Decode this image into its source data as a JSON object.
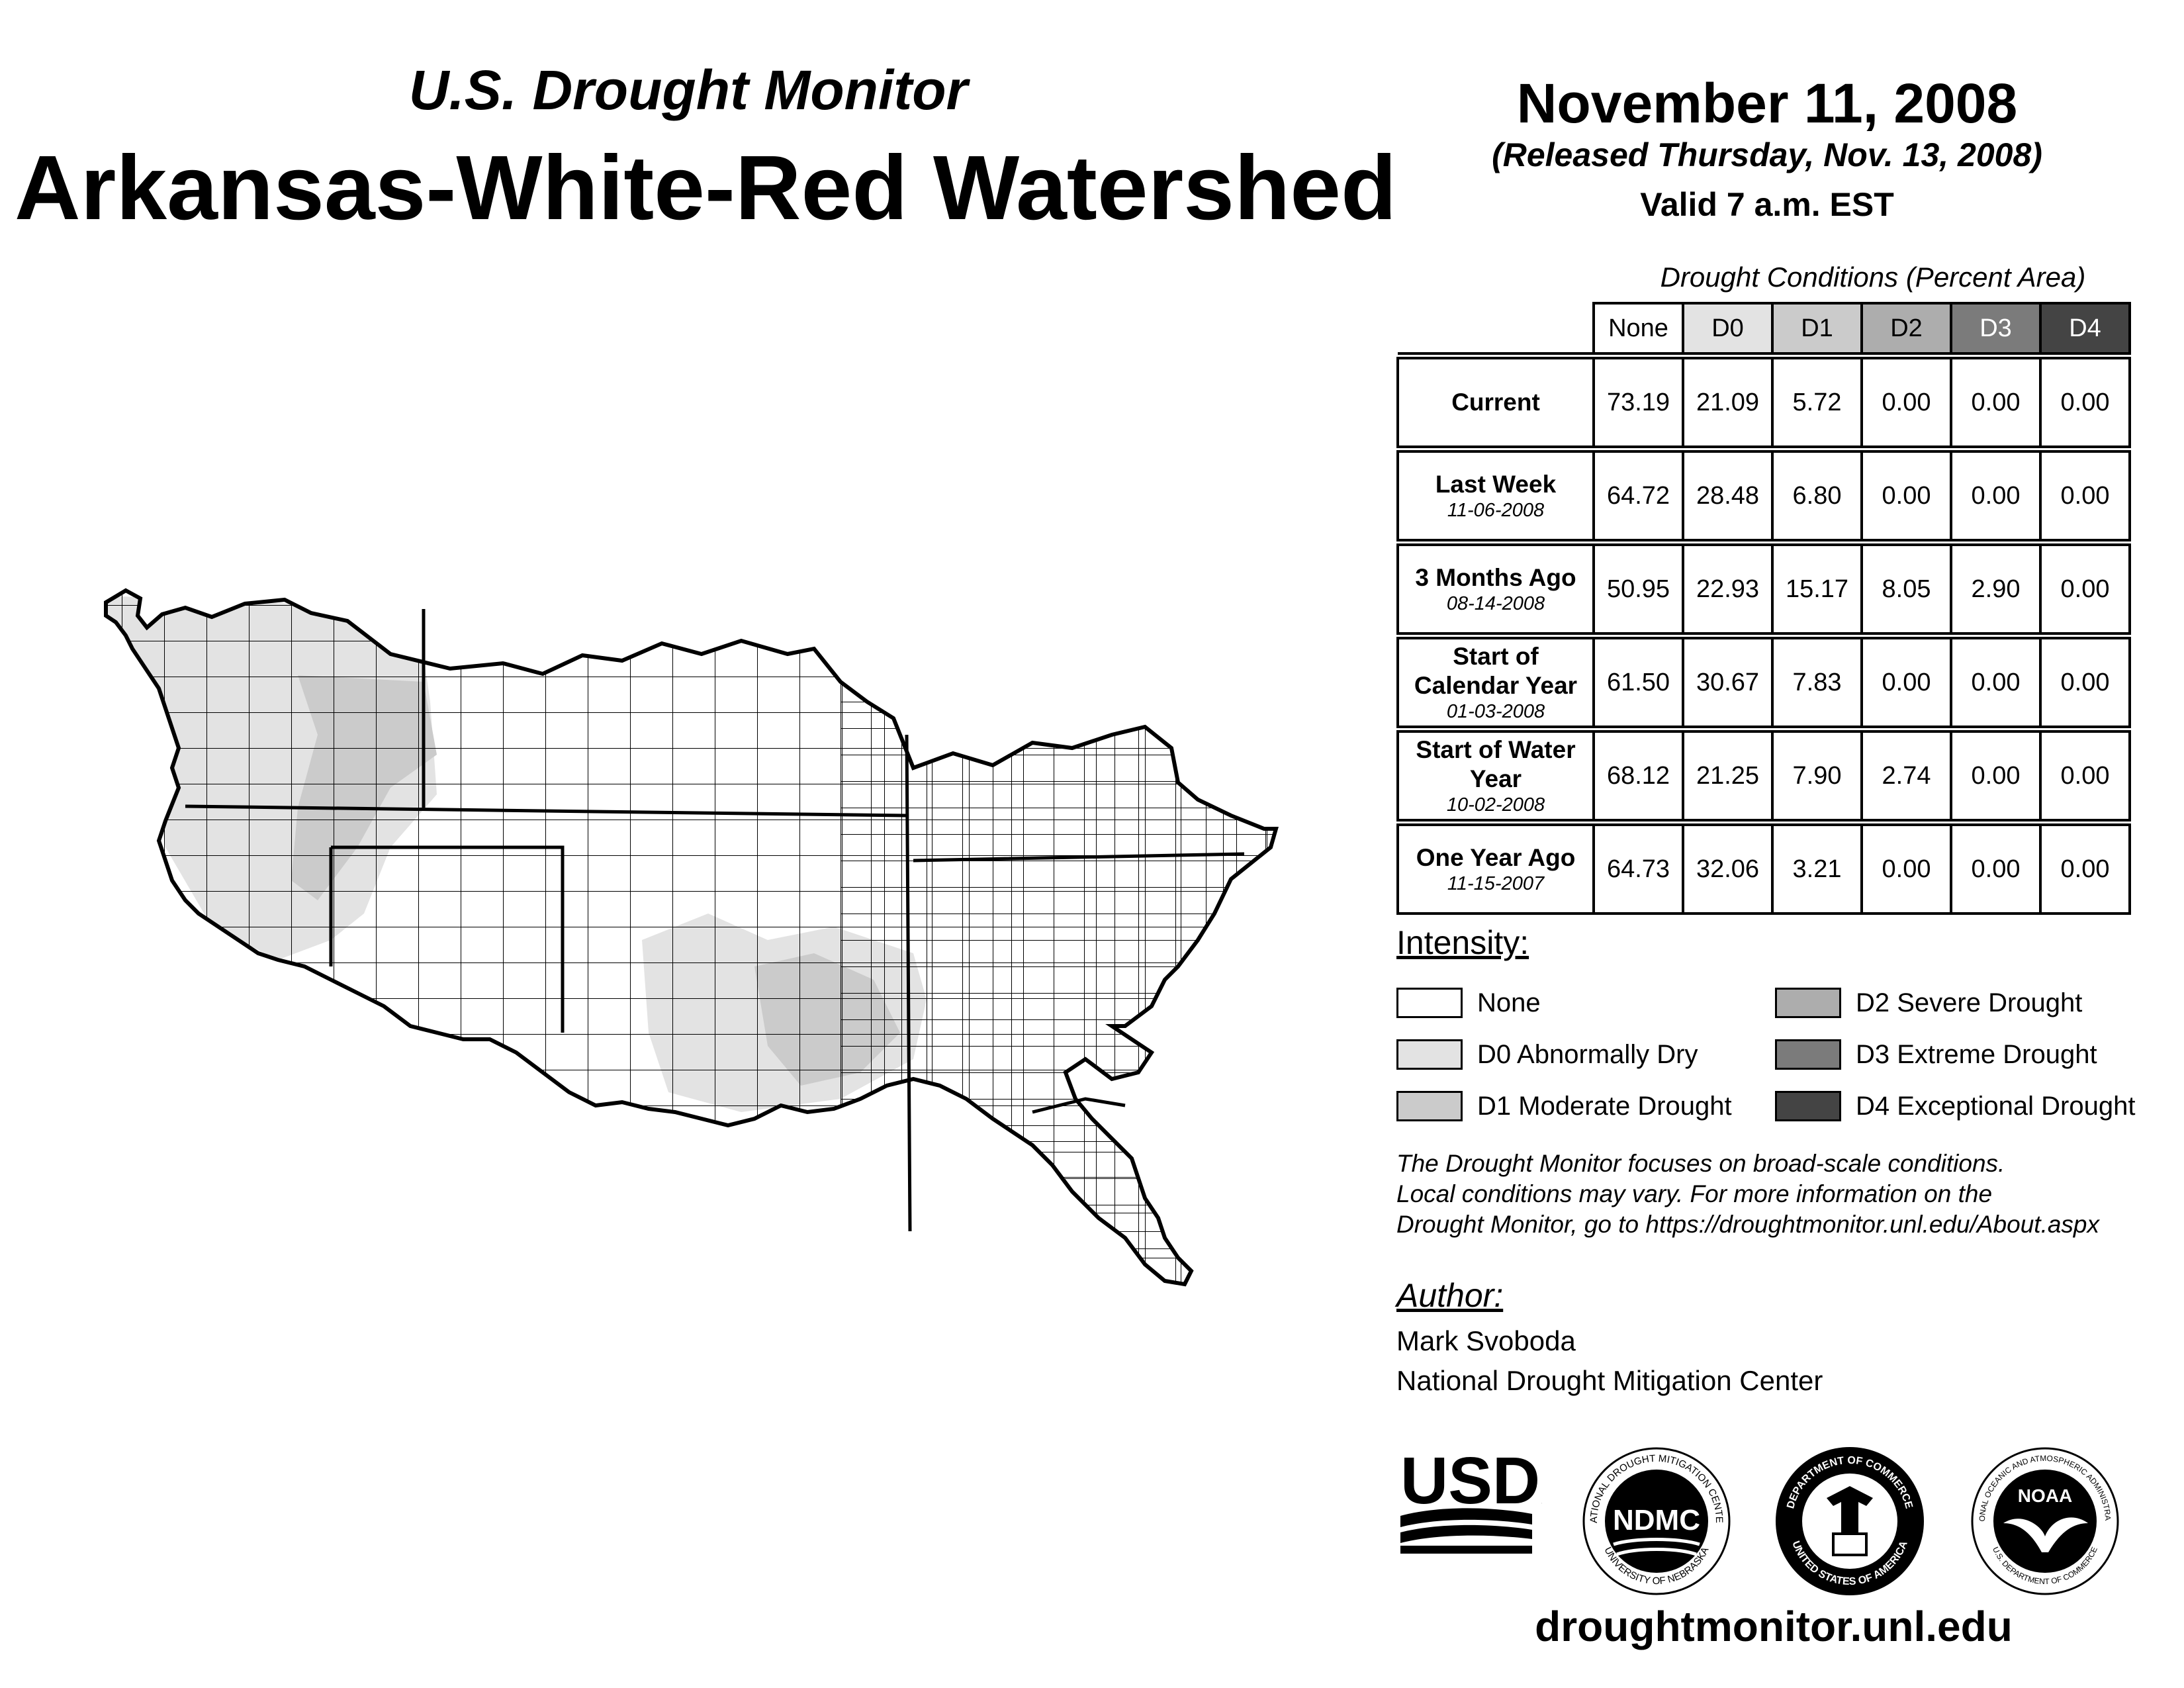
{
  "header": {
    "subtitle": "U.S. Drought Monitor",
    "title": "Arkansas-White-Red Watershed",
    "date": "November 11, 2008",
    "released": "(Released Thursday, Nov. 13, 2008)",
    "valid": "Valid 7 a.m. EST"
  },
  "table": {
    "caption": "Drought Conditions (Percent Area)",
    "columns": [
      "None",
      "D0",
      "D1",
      "D2",
      "D3",
      "D4"
    ],
    "rows": [
      {
        "label": "Current",
        "date": "",
        "values": [
          "73.19",
          "21.09",
          "5.72",
          "0.00",
          "0.00",
          "0.00"
        ]
      },
      {
        "label": "Last Week",
        "date": "11-06-2008",
        "values": [
          "64.72",
          "28.48",
          "6.80",
          "0.00",
          "0.00",
          "0.00"
        ]
      },
      {
        "label": "3 Months Ago",
        "date": "08-14-2008",
        "values": [
          "50.95",
          "22.93",
          "15.17",
          "8.05",
          "2.90",
          "0.00"
        ]
      },
      {
        "label": "Start of Calendar Year",
        "date": "01-03-2008",
        "values": [
          "61.50",
          "30.67",
          "7.83",
          "0.00",
          "0.00",
          "0.00"
        ]
      },
      {
        "label": "Start of Water Year",
        "date": "10-02-2008",
        "values": [
          "68.12",
          "21.25",
          "7.90",
          "2.74",
          "0.00",
          "0.00"
        ]
      },
      {
        "label": "One Year Ago",
        "date": "11-15-2007",
        "values": [
          "64.73",
          "32.06",
          "3.21",
          "0.00",
          "0.00",
          "0.00"
        ]
      }
    ]
  },
  "legend": {
    "title": "Intensity:",
    "items": [
      {
        "label": "None",
        "color": "#ffffff"
      },
      {
        "label": "D0 Abnormally Dry",
        "color": "#e3e3e3"
      },
      {
        "label": "D1 Moderate Drought",
        "color": "#cbcbcb"
      },
      {
        "label": "D2 Severe Drought",
        "color": "#adadad"
      },
      {
        "label": "D3 Extreme Drought",
        "color": "#7b7b7b"
      },
      {
        "label": "D4 Exceptional Drought",
        "color": "#444444"
      }
    ]
  },
  "note": {
    "line1": "The Drought Monitor focuses on broad-scale conditions.",
    "line2": "Local conditions may vary. For more information on the",
    "line3": "Drought Monitor, go to https://droughtmonitor.unl.edu/About.aspx"
  },
  "author": {
    "heading": "Author:",
    "name": "Mark Svoboda",
    "org": "National Drought Mitigation Center"
  },
  "logos": {
    "usda": "USDA",
    "ndmc": "NDMC",
    "ndmc_ring_top": "NATIONAL DROUGHT MITIGATION CENTER",
    "ndmc_ring_bottom": "UNIVERSITY OF NEBRASKA",
    "doc_ring_top": "DEPARTMENT OF COMMERCE",
    "doc_ring_bottom": "UNITED STATES OF AMERICA",
    "noaa": "NOAA",
    "noaa_ring_top": "NATIONAL OCEANIC AND ATMOSPHERIC ADMINISTRATION",
    "noaa_ring_bottom": "U.S. DEPARTMENT OF COMMERCE"
  },
  "footer": {
    "url": "droughtmonitor.unl.edu"
  }
}
